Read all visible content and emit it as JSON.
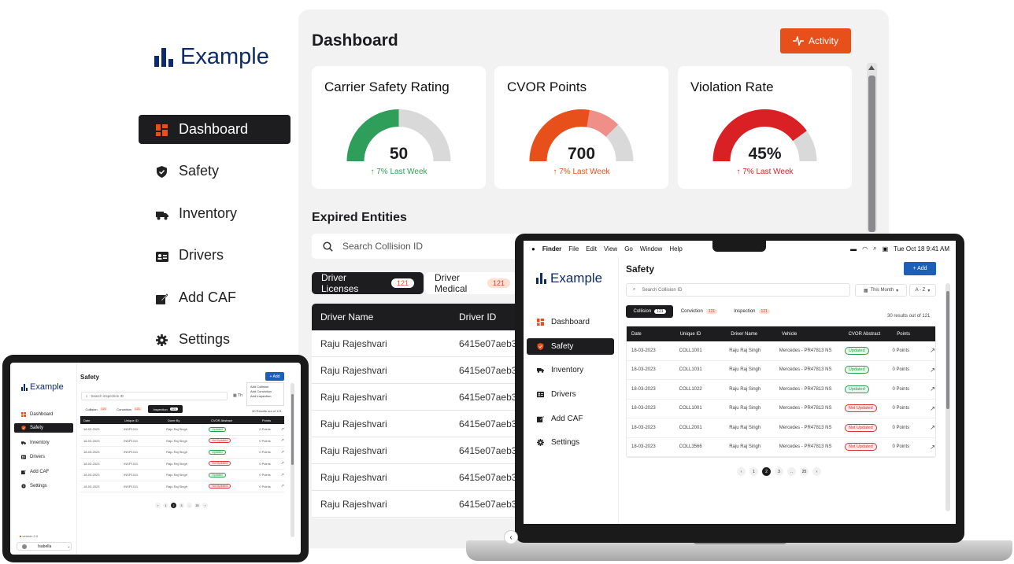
{
  "brand": "Example",
  "desktop": {
    "nav": [
      {
        "label": "Dashboard",
        "icon": "dashboard-icon"
      },
      {
        "label": "Safety",
        "icon": "shield-icon"
      },
      {
        "label": "Inventory",
        "icon": "truck-icon"
      },
      {
        "label": "Drivers",
        "icon": "id-card-icon"
      },
      {
        "label": "Add CAF",
        "icon": "edit-icon"
      },
      {
        "label": "Settings",
        "icon": "gear-icon"
      }
    ],
    "title": "Dashboard",
    "activity_label": "Activity",
    "cards": [
      {
        "title": "Carrier Safety Rating",
        "value": "50",
        "change": "↑ 7% Last Week",
        "fill": 0.5,
        "color": "#2e9e5a",
        "change_color": "#2e9e5a"
      },
      {
        "title": "CVOR Points",
        "value": "700",
        "change": "↑ 7% Last Week",
        "fill": 0.55,
        "fill2": 0.75,
        "color": "#e8501b",
        "color2": "#ef8f88",
        "change_color": "#e8501b"
      },
      {
        "title": "Violation Rate",
        "value": "45%",
        "change": "↑ 7% Last Week",
        "fill": 0.8,
        "color": "#d92125",
        "change_color": "#d92125"
      }
    ],
    "expired_title": "Expired Entities",
    "search_placeholder": "Search Collision ID",
    "tabs": [
      {
        "label": "Driver Licenses",
        "count": "121"
      },
      {
        "label": "Driver Medical",
        "count": "121"
      }
    ],
    "columns": [
      "Driver Name",
      "Driver ID"
    ],
    "rows": [
      [
        "Raju Rajeshvari",
        "6415e07aeb3"
      ],
      [
        "Raju Rajeshvari",
        "6415e07aeb3"
      ],
      [
        "Raju Rajeshvari",
        "6415e07aeb3"
      ],
      [
        "Raju Rajeshvari",
        "6415e07aeb3"
      ],
      [
        "Raju Rajeshvari",
        "6415e07aeb3"
      ],
      [
        "Raju Rajeshvari",
        "6415e07aeb3"
      ],
      [
        "Raju Rajeshvari",
        "6415e07aeb3"
      ]
    ]
  },
  "laptop": {
    "menubar": {
      "finder": "Finder",
      "items": [
        "File",
        "Edit",
        "View",
        "Go",
        "Window",
        "Help"
      ],
      "clock": "Tue Oct 18 9:41 AM"
    },
    "title": "Safety",
    "add_label": "+ Add",
    "search_placeholder": "Search Collision ID",
    "filter1": "This Month",
    "filter2": "A - Z",
    "tabs": [
      {
        "label": "Collision",
        "count": "121"
      },
      {
        "label": "Conviction",
        "count": "121"
      },
      {
        "label": "Inspection",
        "count": "121"
      }
    ],
    "results": "30 results out of 121",
    "nav": [
      "Dashboard",
      "Safety",
      "Inventory",
      "Drivers",
      "Add CAF",
      "Settings"
    ],
    "columns": [
      "Date",
      "Unique ID",
      "Driver Name",
      "Vehicle",
      "CVOR Abstract",
      "Points"
    ],
    "rows": [
      [
        "18-03-2023",
        "COLL1001",
        "Raju Raj Singh",
        "Mercedes - PR47813 NS",
        "Updated",
        "0 Points"
      ],
      [
        "18-03-2023",
        "COLL1031",
        "Raju Raj Singh",
        "Mercedes - PR47813 NS",
        "Updated",
        "0 Points"
      ],
      [
        "18-03-2023",
        "COLL1022",
        "Raju Raj Singh",
        "Mercedes - PR47813 NS",
        "Updated",
        "0 Points"
      ],
      [
        "18-03-2023",
        "COLL1001",
        "Raju Raj Singh",
        "Mercedes - PR47813 NS",
        "Not Updated",
        "0 Points"
      ],
      [
        "18-03-2023",
        "COLL2001",
        "Raju Raj Singh",
        "Mercedes - PR47813 NS",
        "Not Updated",
        "0 Points"
      ],
      [
        "18-03-2023",
        "COLL3566",
        "Raju Raj Singh",
        "Mercedes - PR47813 NS",
        "Not Updated",
        "0 Points"
      ]
    ],
    "pages": [
      "1",
      "2",
      "3",
      "..",
      "25"
    ]
  },
  "tablet": {
    "title": "Safety",
    "add_label": "+ Add",
    "search_placeholder": "Search inspection ID",
    "menu": [
      "Add Collision",
      "Add Conviction",
      "Add Inspection"
    ],
    "tabs": [
      {
        "label": "Collision",
        "count": "121"
      },
      {
        "label": "Conviction",
        "count": "121"
      },
      {
        "label": "Inspection",
        "count": "121"
      }
    ],
    "results": "30 Results out of 121",
    "nav": [
      "Dashboard",
      "Safety",
      "Inventory",
      "Drivers",
      "Add CAF",
      "Settings"
    ],
    "columns": [
      "Date",
      "Unique ID",
      "Done By",
      "CVOR Abstract",
      "Points"
    ],
    "rows": [
      [
        "18-03-2023",
        "INSP1011",
        "Raju Raj Singh",
        "Updated",
        "0 Points"
      ],
      [
        "18-03-2023",
        "INSP1011",
        "Raju Raj Singh",
        "Not Updated",
        "0 Points"
      ],
      [
        "18-03-2023",
        "INSP1011",
        "Raju Raj Singh",
        "Updated",
        "0 Points"
      ],
      [
        "18-03-2023",
        "INSP1011",
        "Raju Raj Singh",
        "Not Updated",
        "0 Points"
      ],
      [
        "18-03-2023",
        "INSP1011",
        "Raju Raj Singh",
        "Updated",
        "0 Points"
      ],
      [
        "18-03-2023",
        "INSP1011",
        "Raju Raj Singh",
        "Not Updated",
        "0 Points"
      ]
    ],
    "pages": [
      "1",
      "2",
      "3",
      "..",
      "25"
    ],
    "version": "version 2.0",
    "user": "Isabella"
  }
}
